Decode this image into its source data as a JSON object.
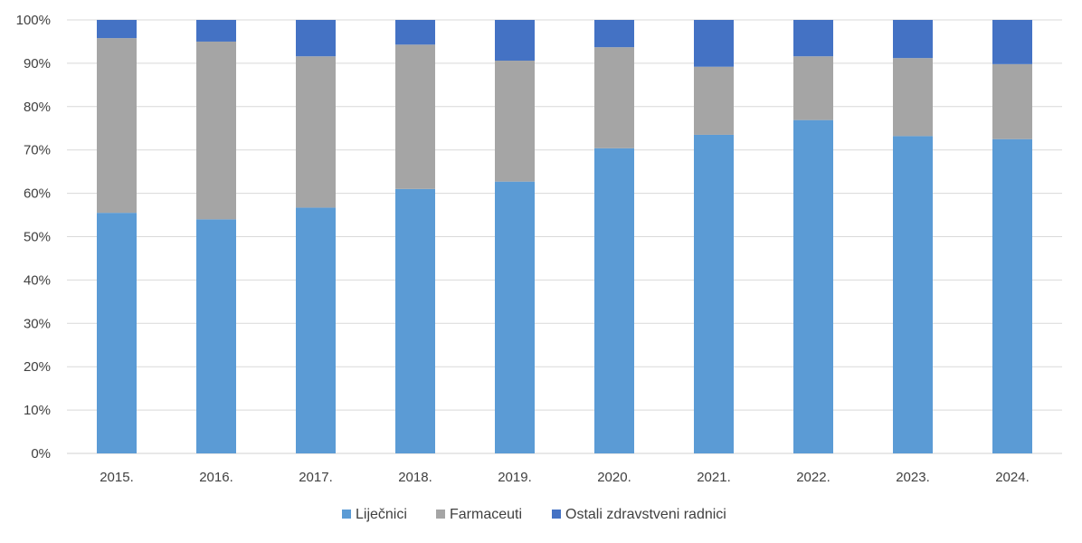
{
  "chart_data": {
    "type": "bar",
    "stacked": true,
    "percent": true,
    "categories": [
      "2015.",
      "2016.",
      "2017.",
      "2018.",
      "2019.",
      "2020.",
      "2021.",
      "2022.",
      "2023.",
      "2024."
    ],
    "series": [
      {
        "name": "Liječnici",
        "color": "#5b9bd5",
        "values": [
          55.5,
          54.0,
          56.7,
          61.0,
          62.7,
          70.4,
          73.5,
          76.9,
          73.2,
          72.5
        ]
      },
      {
        "name": "Farmaceuti",
        "color": "#a5a5a5",
        "values": [
          40.3,
          41.0,
          34.9,
          33.3,
          27.9,
          23.3,
          15.7,
          14.7,
          18.0,
          17.3
        ]
      },
      {
        "name": "Ostali zdravstveni radnici",
        "color": "#4472c4",
        "values": [
          4.2,
          5.0,
          8.4,
          5.7,
          9.4,
          6.3,
          10.8,
          8.4,
          8.8,
          10.2
        ]
      }
    ],
    "yticks": [
      "0%",
      "10%",
      "20%",
      "30%",
      "40%",
      "50%",
      "60%",
      "70%",
      "80%",
      "90%",
      "100%"
    ],
    "ylim": [
      0,
      100
    ],
    "grid": true,
    "legend": "bottom"
  }
}
